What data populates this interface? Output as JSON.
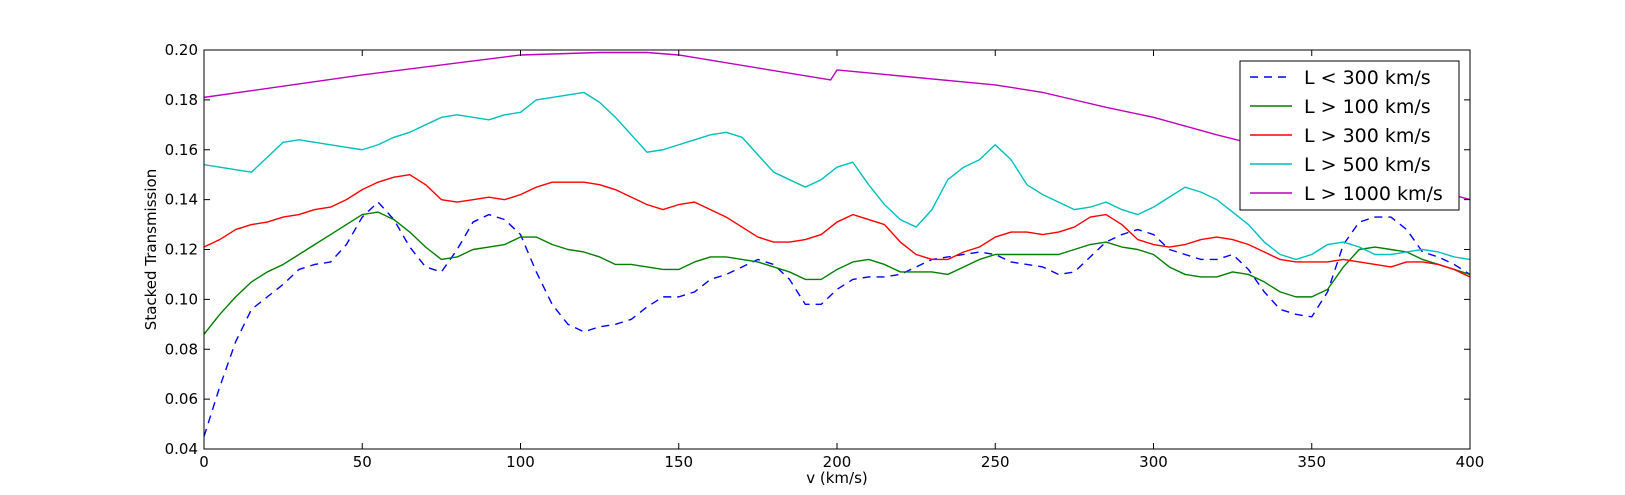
{
  "chart_data": {
    "type": "line",
    "xlabel": "v (km/s)",
    "ylabel": "Stacked Transmission",
    "xlim": [
      0,
      400
    ],
    "ylim": [
      0.04,
      0.2
    ],
    "xticks": [
      "0",
      "50",
      "100",
      "150",
      "200",
      "250",
      "300",
      "350",
      "400"
    ],
    "yticks": [
      "0.04",
      "0.06",
      "0.08",
      "0.10",
      "0.12",
      "0.14",
      "0.16",
      "0.18",
      "0.20"
    ],
    "grid": false,
    "legend_position": "top-right",
    "series": [
      {
        "name": "L < 300 km/s",
        "color": "#0000ff",
        "dash": true,
        "x": [
          0,
          5,
          10,
          15,
          20,
          25,
          30,
          35,
          40,
          45,
          50,
          55,
          60,
          65,
          70,
          75,
          80,
          85,
          90,
          95,
          100,
          105,
          110,
          115,
          120,
          125,
          130,
          135,
          140,
          145,
          150,
          155,
          160,
          165,
          170,
          175,
          180,
          185,
          190,
          195,
          200,
          205,
          210,
          215,
          220,
          225,
          230,
          235,
          240,
          245,
          250,
          255,
          260,
          265,
          270,
          275,
          280,
          285,
          290,
          295,
          300,
          305,
          310,
          315,
          320,
          325,
          330,
          335,
          340,
          345,
          350,
          355,
          360,
          365,
          370,
          375,
          380,
          385,
          390,
          395,
          400
        ],
        "y": [
          0.045,
          0.065,
          0.083,
          0.096,
          0.101,
          0.106,
          0.112,
          0.114,
          0.115,
          0.122,
          0.133,
          0.139,
          0.132,
          0.121,
          0.113,
          0.111,
          0.12,
          0.131,
          0.134,
          0.132,
          0.126,
          0.111,
          0.098,
          0.09,
          0.087,
          0.089,
          0.09,
          0.092,
          0.097,
          0.101,
          0.101,
          0.103,
          0.108,
          0.11,
          0.113,
          0.116,
          0.114,
          0.108,
          0.098,
          0.098,
          0.104,
          0.108,
          0.109,
          0.109,
          0.11,
          0.113,
          0.116,
          0.117,
          0.118,
          0.119,
          0.118,
          0.115,
          0.114,
          0.113,
          0.11,
          0.111,
          0.117,
          0.123,
          0.126,
          0.128,
          0.126,
          0.12,
          0.118,
          0.116,
          0.116,
          0.118,
          0.112,
          0.103,
          0.096,
          0.094,
          0.093,
          0.103,
          0.122,
          0.131,
          0.133,
          0.133,
          0.128,
          0.119,
          0.117,
          0.114,
          0.11
        ]
      },
      {
        "name": "L > 100 km/s",
        "color": "#008000",
        "dash": false,
        "x": [
          0,
          5,
          10,
          15,
          20,
          25,
          30,
          35,
          40,
          45,
          50,
          55,
          60,
          65,
          70,
          75,
          80,
          85,
          90,
          95,
          100,
          105,
          110,
          115,
          120,
          125,
          130,
          135,
          140,
          145,
          150,
          155,
          160,
          165,
          170,
          175,
          180,
          185,
          190,
          195,
          200,
          205,
          210,
          215,
          220,
          225,
          230,
          235,
          240,
          245,
          250,
          255,
          260,
          265,
          270,
          275,
          280,
          285,
          290,
          295,
          300,
          305,
          310,
          315,
          320,
          325,
          330,
          335,
          340,
          345,
          350,
          355,
          360,
          365,
          370,
          375,
          380,
          385,
          390,
          395,
          400
        ],
        "y": [
          0.086,
          0.094,
          0.101,
          0.107,
          0.111,
          0.114,
          0.118,
          0.122,
          0.126,
          0.13,
          0.134,
          0.135,
          0.132,
          0.127,
          0.121,
          0.116,
          0.117,
          0.12,
          0.121,
          0.122,
          0.125,
          0.125,
          0.122,
          0.12,
          0.119,
          0.117,
          0.114,
          0.114,
          0.113,
          0.112,
          0.112,
          0.115,
          0.117,
          0.117,
          0.116,
          0.115,
          0.113,
          0.111,
          0.108,
          0.108,
          0.112,
          0.115,
          0.116,
          0.114,
          0.111,
          0.111,
          0.111,
          0.11,
          0.113,
          0.116,
          0.118,
          0.118,
          0.118,
          0.118,
          0.118,
          0.12,
          0.122,
          0.123,
          0.121,
          0.12,
          0.118,
          0.113,
          0.11,
          0.109,
          0.109,
          0.111,
          0.11,
          0.107,
          0.103,
          0.101,
          0.101,
          0.104,
          0.113,
          0.12,
          0.121,
          0.12,
          0.119,
          0.116,
          0.114,
          0.112,
          0.11
        ]
      },
      {
        "name": "L > 300 km/s",
        "color": "#ff0000",
        "dash": false,
        "x": [
          0,
          5,
          10,
          15,
          20,
          25,
          30,
          35,
          40,
          45,
          50,
          55,
          60,
          65,
          70,
          75,
          80,
          85,
          90,
          95,
          100,
          105,
          110,
          115,
          120,
          125,
          130,
          135,
          140,
          145,
          150,
          155,
          160,
          165,
          170,
          175,
          180,
          185,
          190,
          195,
          200,
          205,
          210,
          215,
          220,
          225,
          230,
          235,
          240,
          245,
          250,
          255,
          260,
          265,
          270,
          275,
          280,
          285,
          290,
          295,
          300,
          305,
          310,
          315,
          320,
          325,
          330,
          335,
          340,
          345,
          350,
          355,
          360,
          365,
          370,
          375,
          380,
          385,
          390,
          395,
          400
        ],
        "y": [
          0.121,
          0.124,
          0.128,
          0.13,
          0.131,
          0.133,
          0.134,
          0.136,
          0.137,
          0.14,
          0.144,
          0.147,
          0.149,
          0.15,
          0.146,
          0.14,
          0.139,
          0.14,
          0.141,
          0.14,
          0.142,
          0.145,
          0.147,
          0.147,
          0.147,
          0.146,
          0.144,
          0.141,
          0.138,
          0.136,
          0.138,
          0.139,
          0.136,
          0.133,
          0.129,
          0.125,
          0.123,
          0.123,
          0.124,
          0.126,
          0.131,
          0.134,
          0.132,
          0.13,
          0.123,
          0.118,
          0.116,
          0.116,
          0.119,
          0.121,
          0.125,
          0.127,
          0.127,
          0.126,
          0.127,
          0.129,
          0.133,
          0.134,
          0.13,
          0.124,
          0.122,
          0.121,
          0.122,
          0.124,
          0.125,
          0.124,
          0.122,
          0.119,
          0.116,
          0.115,
          0.115,
          0.115,
          0.116,
          0.115,
          0.114,
          0.113,
          0.115,
          0.115,
          0.114,
          0.112,
          0.109
        ]
      },
      {
        "name": "L > 500 km/s",
        "color": "#00bfbf",
        "dash": false,
        "x": [
          0,
          5,
          10,
          15,
          20,
          25,
          30,
          35,
          40,
          45,
          50,
          55,
          60,
          65,
          70,
          75,
          80,
          85,
          90,
          95,
          100,
          105,
          110,
          115,
          120,
          125,
          130,
          135,
          140,
          145,
          150,
          155,
          160,
          165,
          170,
          175,
          180,
          185,
          190,
          195,
          200,
          205,
          210,
          215,
          220,
          225,
          230,
          235,
          240,
          245,
          250,
          255,
          260,
          265,
          270,
          275,
          280,
          285,
          290,
          295,
          300,
          305,
          310,
          315,
          320,
          325,
          330,
          335,
          340,
          345,
          350,
          355,
          360,
          365,
          370,
          375,
          380,
          385,
          390,
          395,
          400
        ],
        "y": [
          0.154,
          0.153,
          0.152,
          0.151,
          0.157,
          0.163,
          0.164,
          0.163,
          0.162,
          0.161,
          0.16,
          0.162,
          0.165,
          0.167,
          0.17,
          0.173,
          0.174,
          0.173,
          0.172,
          0.174,
          0.175,
          0.18,
          0.181,
          0.182,
          0.183,
          0.179,
          0.173,
          0.166,
          0.159,
          0.16,
          0.162,
          0.164,
          0.166,
          0.167,
          0.165,
          0.158,
          0.151,
          0.148,
          0.145,
          0.148,
          0.153,
          0.155,
          0.146,
          0.138,
          0.132,
          0.129,
          0.136,
          0.148,
          0.153,
          0.156,
          0.162,
          0.156,
          0.146,
          0.142,
          0.139,
          0.136,
          0.137,
          0.139,
          0.136,
          0.134,
          0.137,
          0.141,
          0.145,
          0.143,
          0.14,
          0.135,
          0.13,
          0.123,
          0.118,
          0.116,
          0.118,
          0.122,
          0.123,
          0.121,
          0.118,
          0.118,
          0.119,
          0.12,
          0.119,
          0.117,
          0.116
        ]
      },
      {
        "name": "L > 1000 km/s",
        "color": "#bf00bf",
        "dash": false,
        "x": [
          0,
          50,
          100,
          125,
          135,
          140,
          150,
          198,
          199,
          200,
          250,
          265,
          275,
          285,
          300,
          320,
          345,
          360,
          380,
          400
        ],
        "y": [
          0.181,
          0.19,
          0.198,
          0.199,
          0.199,
          0.199,
          0.198,
          0.188,
          0.19,
          0.192,
          0.186,
          0.183,
          0.18,
          0.177,
          0.173,
          0.166,
          0.158,
          0.153,
          0.147,
          0.14
        ]
      }
    ]
  }
}
